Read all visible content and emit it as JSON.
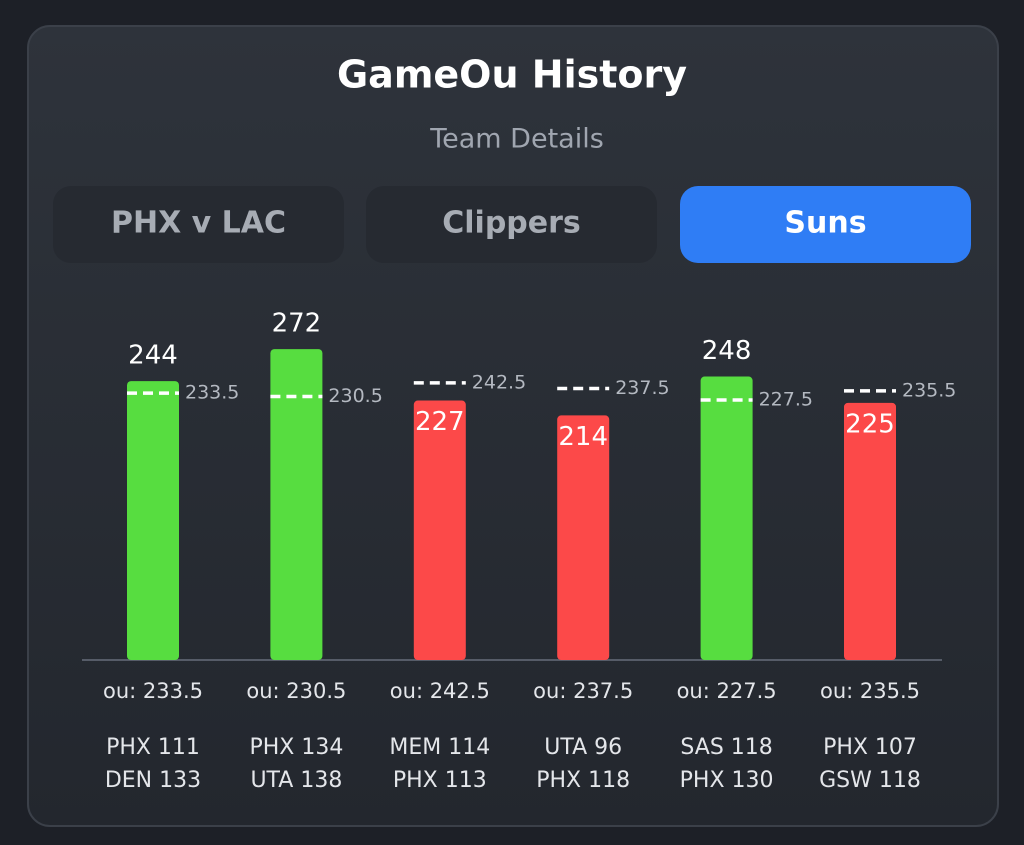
{
  "header": {
    "title": "GameOu History",
    "subtitle": "Team Details"
  },
  "tabs": [
    {
      "label": "PHX v LAC",
      "active": false
    },
    {
      "label": "Clippers",
      "active": false
    },
    {
      "label": "Suns",
      "active": true
    }
  ],
  "chart_data": {
    "type": "bar",
    "values": [
      244,
      272,
      227,
      214,
      248,
      225
    ],
    "lines": [
      233.5,
      230.5,
      242.5,
      237.5,
      227.5,
      235.5
    ],
    "colors": [
      "#57dd40",
      "#57dd40",
      "#fc4949",
      "#fc4949",
      "#57dd40",
      "#fc4949"
    ],
    "ou_labels": [
      "ou: 233.5",
      "ou: 230.5",
      "ou: 242.5",
      "ou: 237.5",
      "ou: 227.5",
      "ou: 235.5"
    ],
    "matchups": [
      [
        "PHX 111",
        "DEN 133"
      ],
      [
        "PHX 134",
        "UTA 138"
      ],
      [
        "MEM 114",
        "PHX 113"
      ],
      [
        "UTA 96",
        "PHX 118"
      ],
      [
        "SAS 118",
        "PHX 130"
      ],
      [
        "PHX 107",
        "GSW 118"
      ]
    ]
  }
}
